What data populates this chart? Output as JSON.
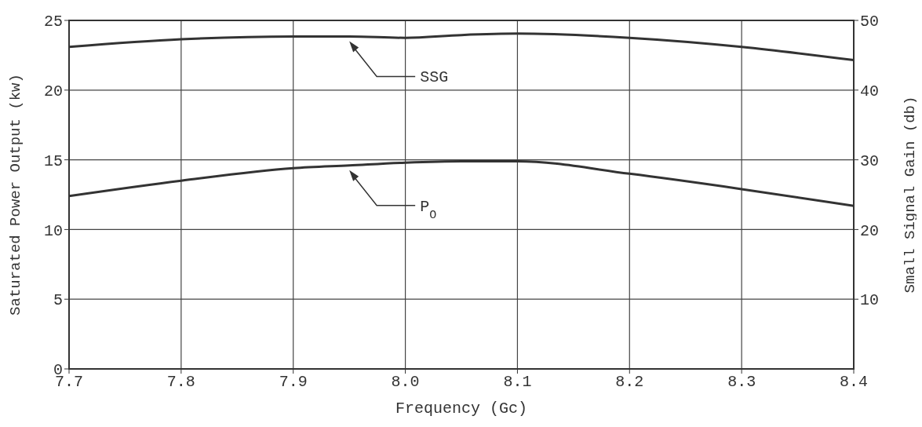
{
  "chart_data": {
    "type": "line",
    "xlabel": "Frequency (Gc)",
    "ylabel": "Saturated Power Output (kw)",
    "y2label": "Small Signal Gain (db)",
    "x": [
      7.7,
      7.8,
      7.9,
      7.95,
      8.0,
      8.05,
      8.1,
      8.2,
      8.3,
      8.4
    ],
    "series": [
      {
        "color": "#333333",
        "values": [
          12.4,
          13.5,
          14.4,
          14.6,
          14.8,
          14.9,
          14.9,
          14.0,
          12.9,
          11.7
        ]
      },
      {
        "color": "#333333",
        "axis": "y2",
        "values": [
          46.2,
          47.3,
          47.7,
          47.7,
          47.5,
          47.9,
          48.1,
          47.5,
          46.2,
          44.3
        ]
      }
    ],
    "xlim": [
      7.7,
      8.4
    ],
    "xticks": [
      7.7,
      7.8,
      7.9,
      {
        "value": 8,
        "label": "8.0"
      },
      8.1,
      8.2,
      8.3,
      8.4
    ],
    "ylim": [
      0,
      25
    ],
    "yticks": [
      0,
      5,
      10,
      15,
      20,
      25
    ],
    "y2lim": [
      0,
      50
    ],
    "y2ticks": [
      10,
      20,
      30,
      40,
      50
    ],
    "grid": true,
    "marker": "none",
    "line_style": "solid",
    "annotations": [
      "P$_{O}$",
      "SSG"
    ]
  }
}
